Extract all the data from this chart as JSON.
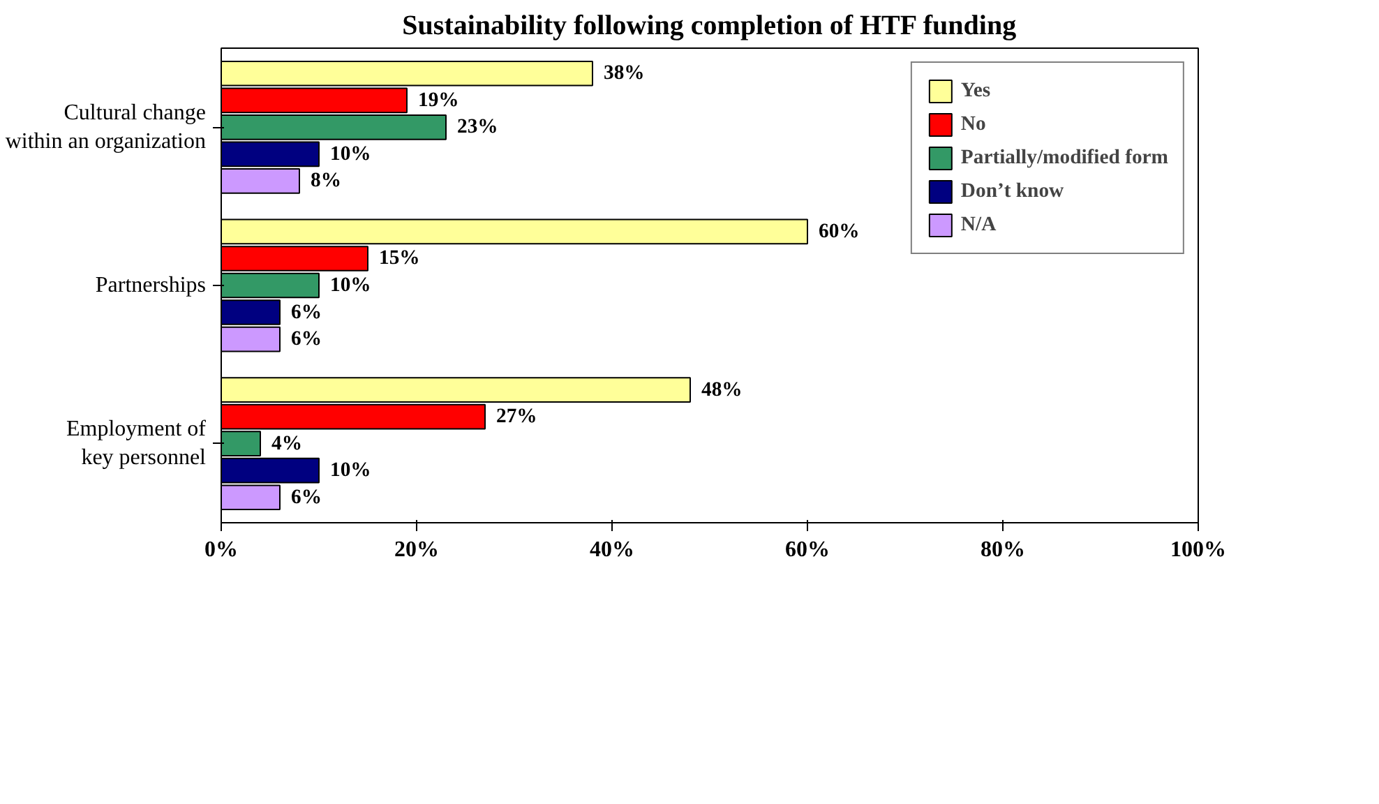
{
  "chart_data": {
    "type": "bar",
    "orientation": "horizontal",
    "title": "Sustainability following completion of HTF funding",
    "categories": [
      "Cultural change within an organization",
      "Partnerships",
      "Employment of key personnel"
    ],
    "series": [
      {
        "name": "Yes",
        "color": "#ffff99",
        "values": [
          38,
          60,
          48
        ],
        "value_labels": [
          "38%",
          "60%",
          "48%"
        ]
      },
      {
        "name": "No",
        "color": "#ff0000",
        "values": [
          19,
          15,
          27
        ],
        "value_labels": [
          "19%",
          "15%",
          "27%"
        ]
      },
      {
        "name": "Partially/modified form",
        "color": "#339966",
        "values": [
          23,
          10,
          4
        ],
        "value_labels": [
          "23%",
          "10%",
          "4%"
        ]
      },
      {
        "name": "Don’t know",
        "color": "#000080",
        "values": [
          10,
          6,
          10
        ],
        "value_labels": [
          "10%",
          "6%",
          "10%"
        ]
      },
      {
        "name": "N/A",
        "color": "#cc99ff",
        "values": [
          8,
          6,
          6
        ],
        "value_labels": [
          "8%",
          "6%",
          "6%"
        ]
      }
    ],
    "xlim": [
      0,
      100
    ],
    "xticks": [
      {
        "value": 0,
        "label": "0%"
      },
      {
        "value": 20,
        "label": "20%"
      },
      {
        "value": 40,
        "label": "40%"
      },
      {
        "value": 60,
        "label": "60%"
      },
      {
        "value": 80,
        "label": "80%"
      },
      {
        "value": 100,
        "label": "100%"
      }
    ],
    "legend": "top right"
  }
}
